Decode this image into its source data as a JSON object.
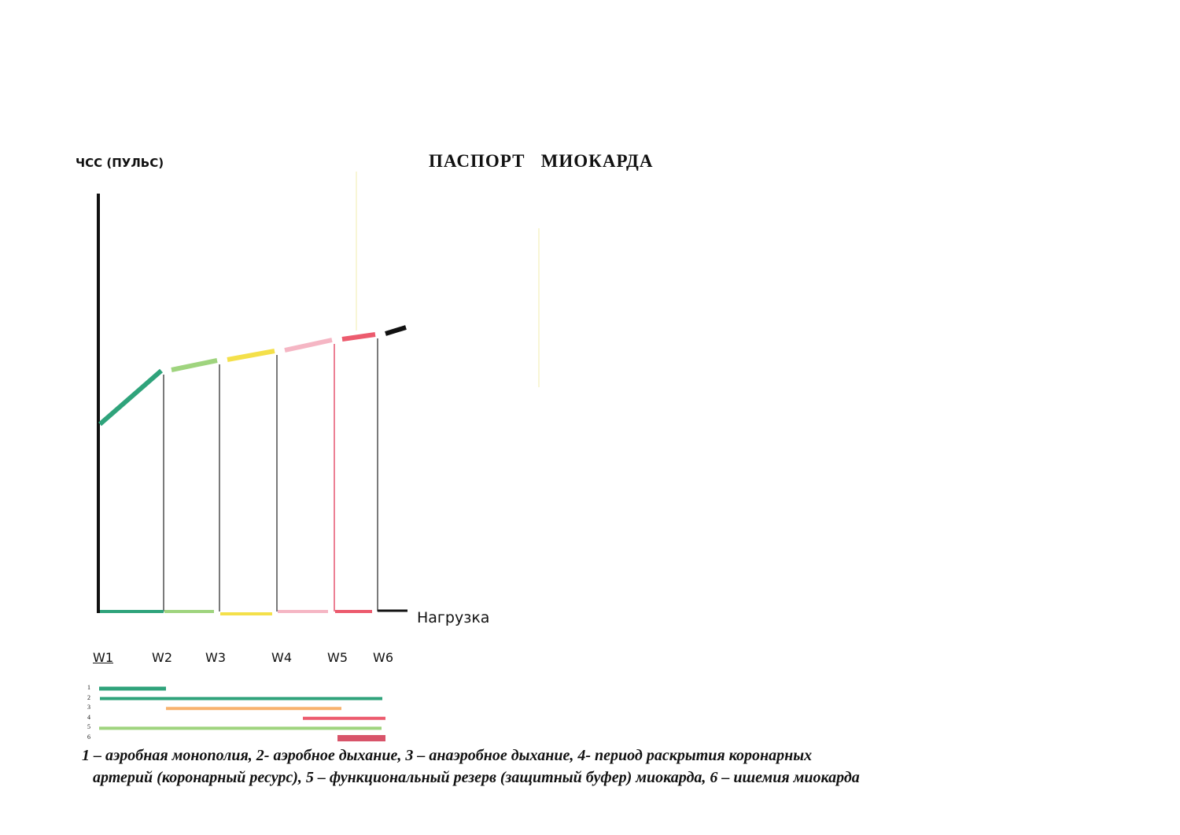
{
  "title": "ПАСПОРТ   МИОКАРДА",
  "chart_data": {
    "type": "line",
    "ylabel": "ЧСС (ПУЛЬС)",
    "xlabel": "Нагрузка",
    "x_ticks": [
      "W1",
      "W2",
      "W3",
      "W4",
      "W5",
      "W6"
    ],
    "grid": false,
    "segments": [
      {
        "from": "W1",
        "to": "W2",
        "color": "#2fa37b"
      },
      {
        "from": "W2",
        "to": "W3",
        "color": "#9fd47e"
      },
      {
        "from": "W3",
        "to": "W4",
        "color": "#f4e04a"
      },
      {
        "from": "W4",
        "to": "W5",
        "color": "#f5b6c4"
      },
      {
        "from": "W5",
        "to": "W6",
        "color": "#ec5b6e"
      },
      {
        "from": "W6",
        "to": "end",
        "color": "#111111"
      }
    ],
    "legend": [
      {
        "num": "1",
        "from": "W1",
        "to": "W2",
        "color": "#2fa37b"
      },
      {
        "num": "2",
        "from": "W1",
        "to": "W6",
        "color": "#2fa37b"
      },
      {
        "num": "3",
        "from": "W2",
        "to": "W5",
        "color": "#f7b26e"
      },
      {
        "num": "4",
        "from": "W4",
        "to": "W6",
        "color": "#ec5b6e"
      },
      {
        "num": "5",
        "from": "W1",
        "to": "W6",
        "color": "#9fd47e"
      },
      {
        "num": "6",
        "from": "W5",
        "to": "W6",
        "color": "#d8546a"
      }
    ]
  },
  "caption": {
    "line1": "1 – аэробная монополия, 2- аэробное дыхание, 3 – анаэробное дыхание, 4- период раскрытия коронарных",
    "line2": "артерий (коронарный ресурс), 5 – функциональный резерв (защитный буфер) миокарда, 6 – ишемия миокарда"
  }
}
